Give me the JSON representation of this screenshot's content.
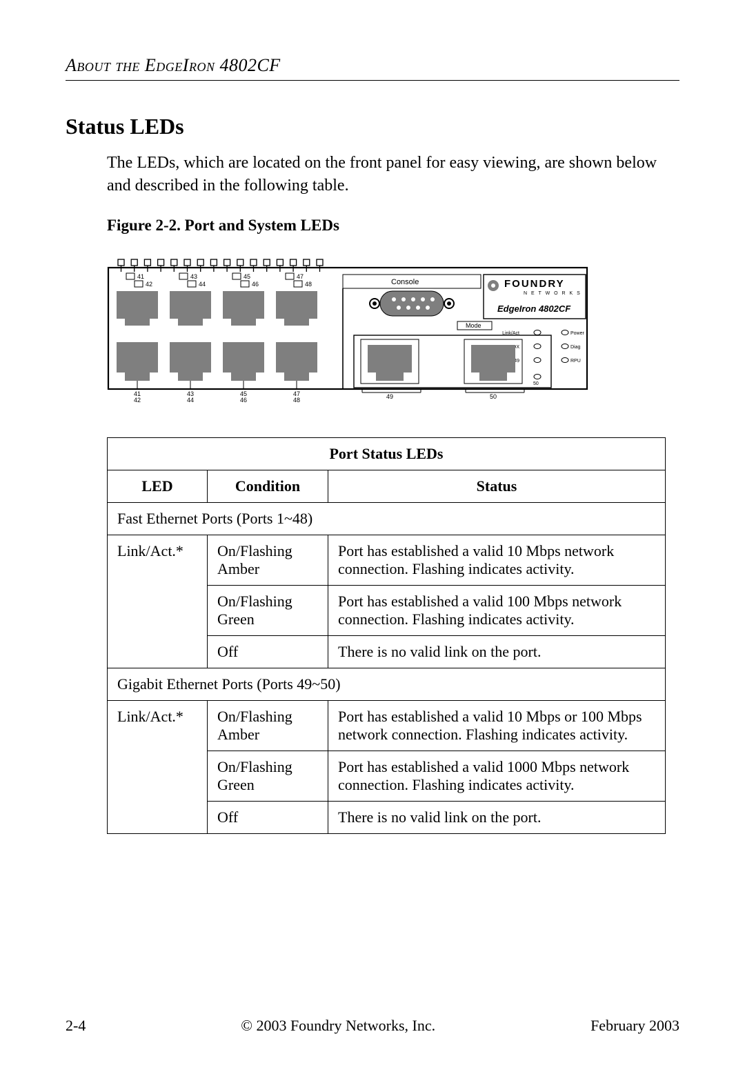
{
  "chapter_header_html": "A<span class='sc'>bout the</span> E<span class='sc'>dge</span>I<span class='sc'>ron</span> 4802CF",
  "section_title": "Status LEDs",
  "intro_paragraph": "The LEDs, which are located on the front panel for easy viewing, are shown below and described in the following table.",
  "figure_caption": "Figure 2-2.  Port and System LEDs",
  "diagram": {
    "top_port_labels": [
      "41",
      "42",
      "43",
      "44",
      "45",
      "46",
      "47",
      "48"
    ],
    "bottom_port_labels": [
      "41",
      "42",
      "43",
      "44",
      "45",
      "46",
      "47",
      "48"
    ],
    "gig_port_labels": [
      "49",
      "50"
    ],
    "console_label": "Console",
    "brand_top": "FOUNDRY",
    "brand_sub": "N E T W O R K S",
    "model_label": "EdgeIron 4802CF",
    "mode_label": "Mode",
    "led_labels": {
      "linkact": "Link/Act",
      "fdx": "FDX",
      "p49": "49",
      "p50": "50",
      "power": "Power",
      "diag": "Diag",
      "rpu": "RPU"
    },
    "colors": {
      "panel_border": "#000000",
      "port_fill": "#7f7f7f",
      "console_fill": "#7f7f7f",
      "bg": "#ffffff",
      "label_text": "#000000",
      "brand_logo": "#7f7f7f"
    }
  },
  "table": {
    "title": "Port Status LEDs",
    "headers": [
      "LED",
      "Condition",
      "Status"
    ],
    "section1_label": "Fast Ethernet Ports (Ports 1~48)",
    "section1_led": "Link/Act.*",
    "section1_rows": [
      {
        "cond": "On/Flashing Amber",
        "status": "Port has established a valid 10 Mbps network connection. Flashing indicates activity."
      },
      {
        "cond": "On/Flashing Green",
        "status": "Port has established a valid 100 Mbps network connection. Flashing indicates activity."
      },
      {
        "cond": "Off",
        "status": "There is no valid link on the port."
      }
    ],
    "section2_label": "Gigabit Ethernet Ports (Ports 49~50)",
    "section2_led": "Link/Act.*",
    "section2_rows": [
      {
        "cond": "On/Flashing Amber",
        "status": "Port has established a valid 10 Mbps or 100 Mbps network connection. Flashing indicates activity."
      },
      {
        "cond": "On/Flashing Green",
        "status": "Port has established a valid 1000 Mbps network connection. Flashing indicates activity."
      },
      {
        "cond": "Off",
        "status": "There is no valid link on the port."
      }
    ]
  },
  "footer": {
    "page": "2-4",
    "copyright": "© 2003 Foundry Networks, Inc.",
    "date": "February 2003"
  }
}
